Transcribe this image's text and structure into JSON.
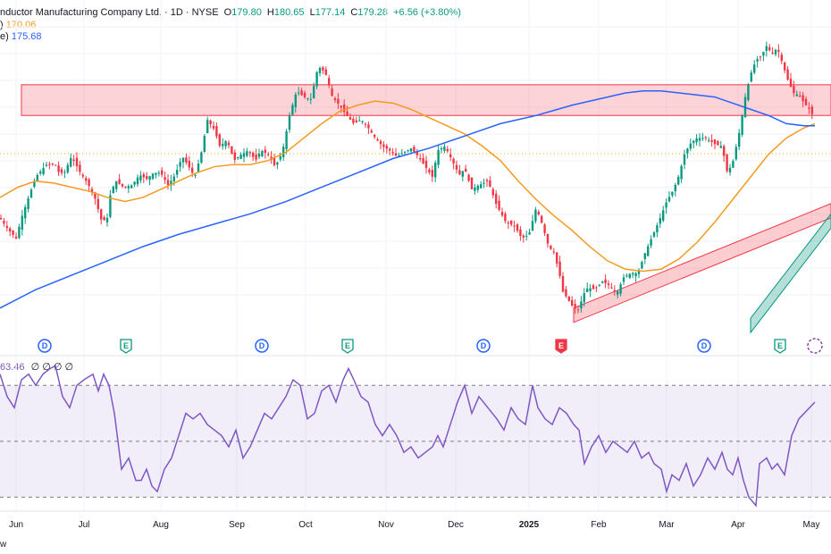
{
  "header": {
    "title": "nductor Manufacturing Company Ltd. · 1D · NYSE",
    "open_label": "O",
    "open": "179.80",
    "high_label": "H",
    "high": "180.65",
    "low_label": "L",
    "low": "177.14",
    "close_label": "C",
    "close": "179.28",
    "change": "+6.56 (+3.80%)",
    "ma1_label": ")",
    "ma1_value": "170.06",
    "ma2_label": "e)",
    "ma2_value": "175.68",
    "rsi_value": "63.46",
    "rsi_extra": "∅ ∅ ∅ ∅",
    "footer": "w"
  },
  "colors": {
    "up": "#089981",
    "down": "#f23645",
    "ma_fast": "#f59a1f",
    "ma_slow": "#2962ff",
    "rsi": "#7e57c2",
    "zone": "#f23645",
    "channel_up": "#089981",
    "channel_down": "#f23645"
  },
  "events": [
    {
      "letter": "D",
      "kind": "dividend",
      "month": "May"
    },
    {
      "letter": "E",
      "kind": "earnings",
      "month": "Jul"
    },
    {
      "letter": "D",
      "kind": "dividend",
      "month": "Sep"
    },
    {
      "letter": "E",
      "kind": "earnings",
      "month": "Oct"
    },
    {
      "letter": "D",
      "kind": "dividend",
      "month": "Dec"
    },
    {
      "letter": "E",
      "kind": "earnings",
      "month": "Jan"
    },
    {
      "letter": "D",
      "kind": "dividend",
      "month": "Mar"
    },
    {
      "letter": "E",
      "kind": "earnings",
      "month": "Apr"
    }
  ],
  "chart_data": [
    {
      "type": "candlestick",
      "x_axis_ticks": [
        "Jun",
        "Jul",
        "Aug",
        "Sep",
        "Oct",
        "Nov",
        "Dec",
        "2025",
        "Feb",
        "Mar",
        "Apr",
        "May"
      ],
      "price_path_close": [
        [
          0,
          150
        ],
        [
          8,
          145
        ],
        [
          18,
          140
        ],
        [
          24,
          150
        ],
        [
          32,
          160
        ],
        [
          40,
          170
        ],
        [
          52,
          176
        ],
        [
          62,
          176
        ],
        [
          66,
          172
        ],
        [
          72,
          172
        ],
        [
          80,
          180
        ],
        [
          90,
          172
        ],
        [
          98,
          167
        ],
        [
          106,
          160
        ],
        [
          114,
          148
        ],
        [
          120,
          150
        ],
        [
          124,
          163
        ],
        [
          130,
          168
        ],
        [
          138,
          165
        ],
        [
          148,
          166
        ],
        [
          156,
          171
        ],
        [
          164,
          169
        ],
        [
          172,
          172
        ],
        [
          180,
          172
        ],
        [
          188,
          166
        ],
        [
          196,
          171
        ],
        [
          204,
          180
        ],
        [
          210,
          176
        ],
        [
          218,
          170
        ],
        [
          226,
          183
        ],
        [
          232,
          198
        ],
        [
          240,
          193
        ],
        [
          246,
          185
        ],
        [
          254,
          188
        ],
        [
          262,
          178
        ],
        [
          270,
          181
        ],
        [
          278,
          183
        ],
        [
          286,
          178
        ],
        [
          292,
          183
        ],
        [
          300,
          181
        ],
        [
          308,
          175
        ],
        [
          316,
          182
        ],
        [
          324,
          200
        ],
        [
          332,
          212
        ],
        [
          340,
          209
        ],
        [
          348,
          208
        ],
        [
          356,
          224
        ],
        [
          364,
          221
        ],
        [
          372,
          209
        ],
        [
          380,
          205
        ],
        [
          388,
          200
        ],
        [
          396,
          196
        ],
        [
          404,
          198
        ],
        [
          412,
          194
        ],
        [
          420,
          189
        ],
        [
          428,
          185
        ],
        [
          436,
          183
        ],
        [
          444,
          180
        ],
        [
          452,
          182
        ],
        [
          460,
          184
        ],
        [
          468,
          180
        ],
        [
          476,
          175
        ],
        [
          484,
          170
        ],
        [
          490,
          183
        ],
        [
          498,
          185
        ],
        [
          506,
          178
        ],
        [
          514,
          171
        ],
        [
          520,
          174
        ],
        [
          528,
          164
        ],
        [
          536,
          166
        ],
        [
          546,
          168
        ],
        [
          556,
          156
        ],
        [
          566,
          148
        ],
        [
          576,
          146
        ],
        [
          584,
          140
        ],
        [
          592,
          142
        ],
        [
          600,
          155
        ],
        [
          606,
          148
        ],
        [
          614,
          136
        ],
        [
          620,
          133
        ],
        [
          626,
          123
        ],
        [
          630,
          114
        ],
        [
          636,
          110
        ],
        [
          642,
          106
        ],
        [
          648,
          105
        ],
        [
          652,
          112
        ],
        [
          658,
          116
        ],
        [
          666,
          115
        ],
        [
          674,
          119
        ],
        [
          682,
          117
        ],
        [
          690,
          113
        ],
        [
          698,
          121
        ],
        [
          706,
          123
        ],
        [
          714,
          123
        ],
        [
          722,
          133
        ],
        [
          730,
          141
        ],
        [
          738,
          149
        ],
        [
          746,
          158
        ],
        [
          754,
          164
        ],
        [
          760,
          171
        ],
        [
          766,
          181
        ],
        [
          772,
          186
        ],
        [
          780,
          189
        ],
        [
          790,
          189
        ],
        [
          800,
          186
        ],
        [
          808,
          185
        ],
        [
          814,
          172
        ],
        [
          820,
          177
        ],
        [
          828,
          193
        ],
        [
          834,
          209
        ],
        [
          840,
          220
        ],
        [
          846,
          227
        ],
        [
          852,
          229
        ],
        [
          858,
          234
        ],
        [
          864,
          230
        ],
        [
          870,
          233
        ],
        [
          876,
          225
        ],
        [
          882,
          217
        ],
        [
          888,
          211
        ],
        [
          894,
          210
        ],
        [
          900,
          206
        ],
        [
          906,
          203
        ],
        [
          912,
          198
        ]
      ],
      "ma_fast_path": [
        [
          0,
          160
        ],
        [
          20,
          165
        ],
        [
          40,
          168
        ],
        [
          60,
          167
        ],
        [
          80,
          165
        ],
        [
          100,
          163
        ],
        [
          120,
          160
        ],
        [
          140,
          158
        ],
        [
          160,
          160
        ],
        [
          180,
          164
        ],
        [
          200,
          168
        ],
        [
          220,
          172
        ],
        [
          240,
          175
        ],
        [
          260,
          176
        ],
        [
          280,
          176
        ],
        [
          300,
          178
        ],
        [
          320,
          182
        ],
        [
          340,
          189
        ],
        [
          360,
          196
        ],
        [
          380,
          202
        ],
        [
          400,
          205
        ],
        [
          420,
          207
        ],
        [
          440,
          206
        ],
        [
          460,
          203
        ],
        [
          480,
          199
        ],
        [
          500,
          195
        ],
        [
          520,
          191
        ],
        [
          540,
          185
        ],
        [
          560,
          178
        ],
        [
          580,
          168
        ],
        [
          600,
          159
        ],
        [
          620,
          151
        ],
        [
          640,
          144
        ],
        [
          660,
          136
        ],
        [
          680,
          129
        ],
        [
          700,
          125
        ],
        [
          720,
          124
        ],
        [
          740,
          125
        ],
        [
          760,
          130
        ],
        [
          780,
          138
        ],
        [
          800,
          148
        ],
        [
          820,
          159
        ],
        [
          840,
          170
        ],
        [
          860,
          181
        ],
        [
          880,
          189
        ],
        [
          900,
          194
        ],
        [
          912,
          196
        ]
      ],
      "ma_slow_path": [
        [
          0,
          106
        ],
        [
          40,
          115
        ],
        [
          80,
          122
        ],
        [
          120,
          129
        ],
        [
          160,
          136
        ],
        [
          200,
          142
        ],
        [
          240,
          147
        ],
        [
          280,
          152
        ],
        [
          320,
          158
        ],
        [
          360,
          165
        ],
        [
          400,
          172
        ],
        [
          440,
          179
        ],
        [
          480,
          184
        ],
        [
          520,
          190
        ],
        [
          560,
          196
        ],
        [
          600,
          200
        ],
        [
          640,
          205
        ],
        [
          680,
          209
        ],
        [
          700,
          211
        ],
        [
          720,
          212
        ],
        [
          740,
          212
        ],
        [
          760,
          211
        ],
        [
          780,
          210
        ],
        [
          800,
          209
        ],
        [
          820,
          206
        ],
        [
          840,
          203
        ],
        [
          860,
          200
        ],
        [
          880,
          196
        ],
        [
          900,
          195
        ],
        [
          912,
          195
        ]
      ],
      "resistance_zone_close_range": [
        200,
        215
      ],
      "channel_down_points": [
        [
          642,
          106
        ],
        [
          930,
          157
        ]
      ],
      "channel_up_points": [
        [
          840,
          101
        ],
        [
          930,
          152
        ]
      ]
    },
    {
      "type": "line",
      "name": "RSI",
      "current_value": 63.46,
      "overbought_level": 70,
      "oversold_level": 30,
      "middle_level": 50,
      "ylim": [
        25,
        80
      ],
      "values": [
        [
          0,
          74
        ],
        [
          8,
          66
        ],
        [
          16,
          62
        ],
        [
          24,
          72
        ],
        [
          32,
          74
        ],
        [
          40,
          70
        ],
        [
          48,
          74
        ],
        [
          56,
          76
        ],
        [
          62,
          77
        ],
        [
          70,
          66
        ],
        [
          78,
          62
        ],
        [
          86,
          70
        ],
        [
          94,
          72
        ],
        [
          104,
          74
        ],
        [
          110,
          68
        ],
        [
          116,
          74
        ],
        [
          122,
          70
        ],
        [
          128,
          60
        ],
        [
          136,
          40
        ],
        [
          144,
          44
        ],
        [
          152,
          36
        ],
        [
          158,
          36
        ],
        [
          164,
          40
        ],
        [
          170,
          34
        ],
        [
          176,
          32
        ],
        [
          184,
          40
        ],
        [
          192,
          44
        ],
        [
          200,
          52
        ],
        [
          208,
          60
        ],
        [
          216,
          58
        ],
        [
          224,
          60
        ],
        [
          232,
          56
        ],
        [
          240,
          54
        ],
        [
          248,
          52
        ],
        [
          256,
          48
        ],
        [
          264,
          54
        ],
        [
          272,
          44
        ],
        [
          280,
          48
        ],
        [
          288,
          54
        ],
        [
          296,
          60
        ],
        [
          304,
          58
        ],
        [
          312,
          62
        ],
        [
          320,
          66
        ],
        [
          328,
          72
        ],
        [
          336,
          70
        ],
        [
          344,
          58
        ],
        [
          352,
          60
        ],
        [
          360,
          68
        ],
        [
          368,
          70
        ],
        [
          376,
          64
        ],
        [
          384,
          72
        ],
        [
          390,
          76
        ],
        [
          396,
          72
        ],
        [
          404,
          66
        ],
        [
          412,
          64
        ],
        [
          420,
          56
        ],
        [
          428,
          52
        ],
        [
          436,
          56
        ],
        [
          444,
          52
        ],
        [
          452,
          46
        ],
        [
          460,
          48
        ],
        [
          468,
          44
        ],
        [
          476,
          46
        ],
        [
          484,
          48
        ],
        [
          490,
          52
        ],
        [
          496,
          48
        ],
        [
          504,
          56
        ],
        [
          512,
          64
        ],
        [
          520,
          70
        ],
        [
          528,
          60
        ],
        [
          536,
          66
        ],
        [
          546,
          62
        ],
        [
          556,
          58
        ],
        [
          564,
          54
        ],
        [
          572,
          62
        ],
        [
          580,
          58
        ],
        [
          588,
          56
        ],
        [
          596,
          70
        ],
        [
          602,
          62
        ],
        [
          610,
          58
        ],
        [
          618,
          56
        ],
        [
          626,
          62
        ],
        [
          634,
          60
        ],
        [
          642,
          56
        ],
        [
          648,
          54
        ],
        [
          654,
          42
        ],
        [
          662,
          48
        ],
        [
          670,
          52
        ],
        [
          678,
          46
        ],
        [
          686,
          50
        ],
        [
          694,
          48
        ],
        [
          702,
          46
        ],
        [
          710,
          50
        ],
        [
          718,
          44
        ],
        [
          726,
          46
        ],
        [
          732,
          42
        ],
        [
          740,
          40
        ],
        [
          746,
          32
        ],
        [
          752,
          38
        ],
        [
          760,
          36
        ],
        [
          768,
          42
        ],
        [
          776,
          34
        ],
        [
          784,
          38
        ],
        [
          792,
          44
        ],
        [
          800,
          40
        ],
        [
          808,
          46
        ],
        [
          814,
          40
        ],
        [
          820,
          38
        ],
        [
          826,
          44
        ],
        [
          832,
          36
        ],
        [
          838,
          30
        ],
        [
          846,
          27
        ],
        [
          850,
          42
        ],
        [
          858,
          44
        ],
        [
          864,
          40
        ],
        [
          870,
          42
        ],
        [
          878,
          38
        ],
        [
          886,
          52
        ],
        [
          894,
          58
        ],
        [
          900,
          60
        ],
        [
          906,
          62
        ],
        [
          912,
          64
        ]
      ]
    }
  ]
}
